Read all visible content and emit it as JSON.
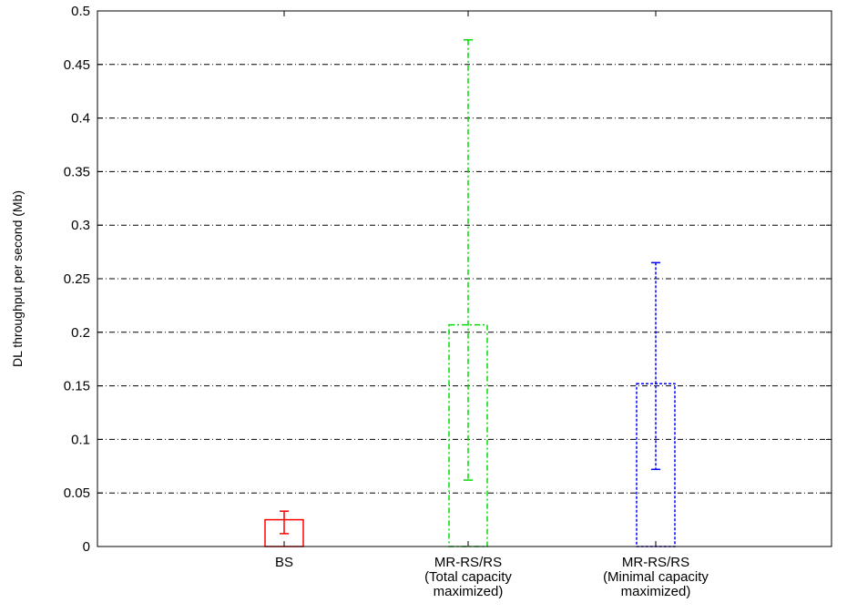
{
  "chart_data": {
    "type": "bar",
    "ylabel": "DL throughput per second (Mb)",
    "xlabel": "",
    "ylim": [
      0,
      0.5
    ],
    "yticks": [
      "0",
      "0.05",
      "0.1",
      "0.15",
      "0.2",
      "0.25",
      "0.3",
      "0.35",
      "0.4",
      "0.45",
      "0.5"
    ],
    "grid": "horizontal",
    "categories": [
      {
        "lines": [
          "BS"
        ]
      },
      {
        "lines": [
          "MR-RS/RS",
          "(Total capacity",
          "maximized)"
        ]
      },
      {
        "lines": [
          "MR-RS/RS",
          "(Minimal capacity",
          "maximized)"
        ]
      }
    ],
    "bars": [
      {
        "value": 0.025,
        "err_low": 0.012,
        "err_high": 0.033,
        "color": "#ff0000",
        "style": "solid"
      },
      {
        "value": 0.207,
        "err_low": 0.062,
        "err_high": 0.473,
        "color": "#00dd00",
        "style": "dashdot"
      },
      {
        "value": 0.152,
        "err_low": 0.072,
        "err_high": 0.265,
        "color": "#0000ff",
        "style": "dotted"
      }
    ]
  }
}
